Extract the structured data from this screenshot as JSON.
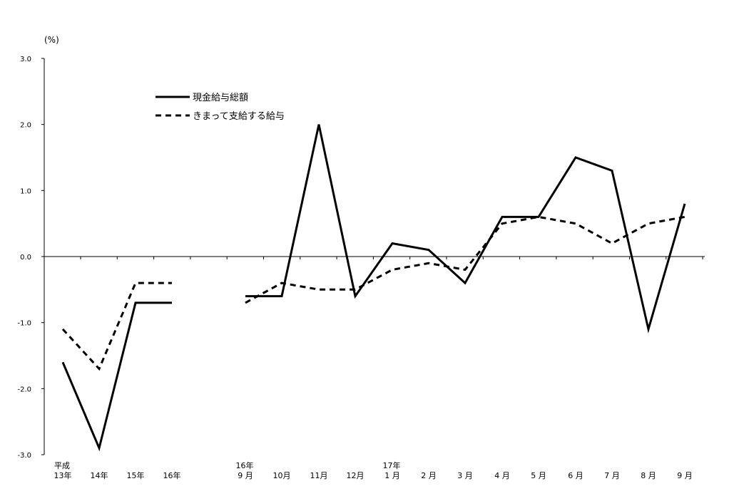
{
  "chart_data": {
    "type": "line",
    "y_unit": "(%)",
    "ylim": [
      -3.0,
      3.0
    ],
    "yticks": [
      "3.0",
      "2.0",
      "1.0",
      "0.0",
      "-1.0",
      "-2.0",
      "-3.0"
    ],
    "ytick_values": [
      3,
      2,
      1,
      0,
      -1,
      -2,
      -3
    ],
    "x_labels": [
      [
        "平成",
        "13年"
      ],
      [
        "",
        "14年"
      ],
      [
        "",
        "15年"
      ],
      [
        "",
        "16年"
      ],
      [
        "16年",
        "9 月"
      ],
      [
        "",
        "10月"
      ],
      [
        "",
        "11月"
      ],
      [
        "",
        "12月"
      ],
      [
        "17年",
        "1 月"
      ],
      [
        "",
        "2 月"
      ],
      [
        "",
        "3 月"
      ],
      [
        "",
        "4 月"
      ],
      [
        "",
        "5 月"
      ],
      [
        "",
        "6 月"
      ],
      [
        "",
        "7 月"
      ],
      [
        "",
        "8 月"
      ],
      [
        "",
        "9 月"
      ]
    ],
    "grid": false,
    "legend_position": "top-left",
    "series": [
      {
        "name": "現金給与総額",
        "style": "solid",
        "segments": [
          [
            -1.6,
            -2.9,
            -0.7,
            -0.7
          ],
          [
            -0.6,
            -0.6,
            2.0,
            -0.6,
            0.2,
            0.1,
            -0.4,
            0.6,
            0.6,
            1.5,
            1.3,
            -1.1,
            0.8
          ]
        ]
      },
      {
        "name": "きまって支給する給与",
        "style": "dashed",
        "segments": [
          [
            -1.1,
            -1.7,
            -0.4,
            -0.4
          ],
          [
            -0.7,
            -0.4,
            -0.5,
            -0.5,
            -0.2,
            -0.1,
            -0.2,
            0.5,
            0.6,
            0.5,
            0.2,
            0.5,
            0.6
          ]
        ]
      }
    ]
  }
}
